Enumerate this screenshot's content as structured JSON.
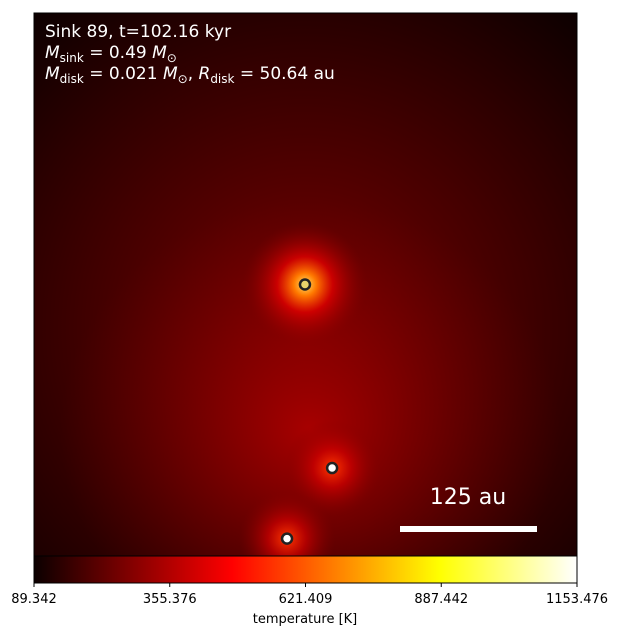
{
  "chart_data": {
    "type": "heatmap",
    "annotation": {
      "line1": "Sink 89, t=102.16 kyr",
      "line2_sym": "M",
      "line2_sub": "sink",
      "line2_val": " = 0.49 ",
      "line2_unit_sym": "M",
      "line2_unit_sub": "⊙",
      "line3_sym1": "M",
      "line3_sub1": "disk",
      "line3_val1": " = 0.021 ",
      "line3_unit_sym": "M",
      "line3_unit_sub": "⊙",
      "line3_sep": ", ",
      "line3_sym2": "R",
      "line3_sub2": "disk",
      "line3_val2": " = 50.64 au"
    },
    "sinks": [
      {
        "x_frac": 0.499,
        "y_frac": 0.5,
        "ring": "#e8d36a"
      },
      {
        "x_frac": 0.549,
        "y_frac": 0.838,
        "ring": "#ffffff"
      },
      {
        "x_frac": 0.466,
        "y_frac": 0.968,
        "ring": "#ffffff"
      }
    ],
    "scale_bar": {
      "label": "125 au",
      "length_au": 125
    },
    "colorbar": {
      "label": "temperature [K]",
      "ticks": [
        "89.342",
        "355.376",
        "621.409",
        "887.442",
        "1153.476"
      ],
      "range": [
        89.342,
        1153.476
      ],
      "colormap": "hot"
    }
  }
}
